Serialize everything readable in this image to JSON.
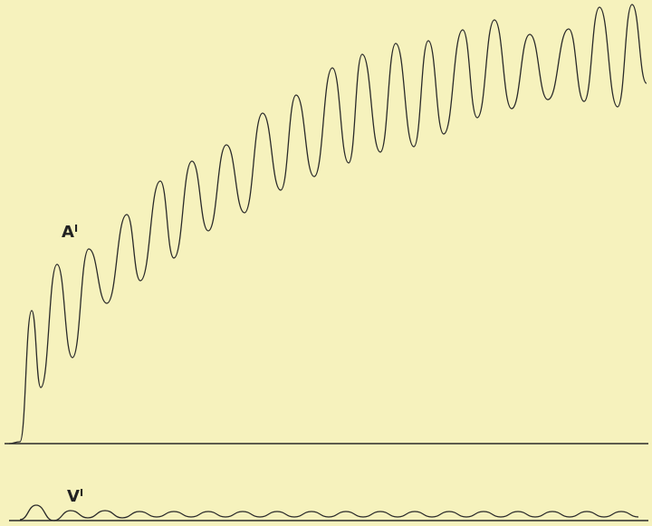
{
  "labels": [
    {
      "text": "A",
      "sup": "I"
    },
    {
      "text": "V",
      "sup": "I"
    }
  ]
}
